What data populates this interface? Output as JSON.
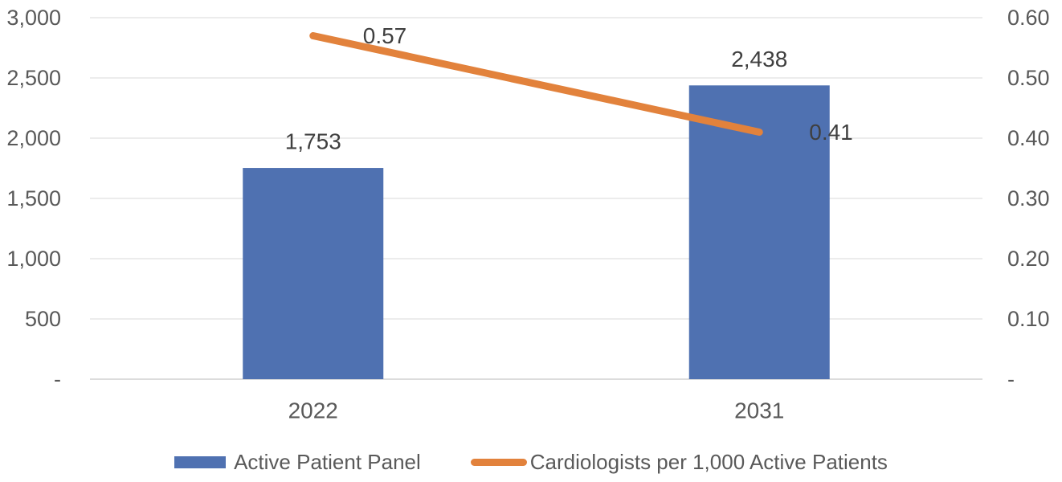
{
  "chart_data": {
    "type": "combo",
    "title": "",
    "categories": [
      "2022",
      "2031"
    ],
    "series": [
      {
        "name": "Active Patient Panel",
        "type": "bar",
        "axis": "left",
        "values": [
          1753,
          2438
        ],
        "data_labels": [
          "1,753",
          "2,438"
        ],
        "color": "#4F71B1"
      },
      {
        "name": "Cardiologists per 1,000 Active Patients",
        "type": "line",
        "axis": "right",
        "values": [
          0.57,
          0.41
        ],
        "data_labels": [
          "0.57",
          "0.41"
        ],
        "color": "#E2823C"
      }
    ],
    "left_axis": {
      "min": 0,
      "max": 3000,
      "step": 500,
      "tick_labels_top_to_bottom": [
        "3,000",
        "2,500",
        "2,000",
        "1,500",
        "1,000",
        "500",
        "-"
      ]
    },
    "right_axis": {
      "min": 0,
      "max": 0.6,
      "step": 0.1,
      "tick_labels_top_to_bottom": [
        "0.60",
        "0.50",
        "0.40",
        "0.30",
        "0.20",
        "0.10",
        "-"
      ]
    },
    "grid": true,
    "legend_position": "bottom",
    "colors": {
      "gridline": "#D9D9D9",
      "axis_line": "#D0D0D0",
      "axis_text": "#595959",
      "data_label_text": "#3F3F3F",
      "background": "#FFFFFF"
    }
  }
}
